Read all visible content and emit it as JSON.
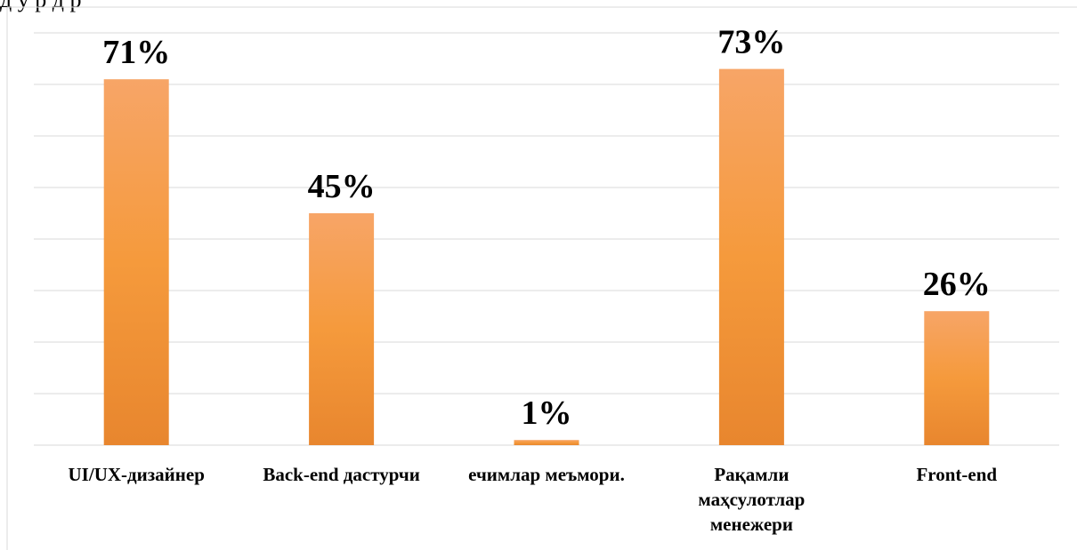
{
  "top_fragment": "д  у р д р",
  "chart_data": {
    "type": "bar",
    "categories": [
      [
        "UI/UX-дизайнер"
      ],
      [
        "Back-end дастурчи"
      ],
      [
        "ечимлар меъмори."
      ],
      [
        "Рақамли",
        "маҳсулотлар",
        "менежери"
      ],
      [
        "Front-end"
      ]
    ],
    "values": [
      71,
      45,
      1,
      73,
      26
    ],
    "value_labels": [
      "71%",
      "45%",
      "1%",
      "73%",
      "26%"
    ],
    "ylim": [
      0,
      80
    ],
    "grid": true,
    "colors": {
      "bar_top": "#f7a567",
      "bar_mid": "#f59a3c",
      "bar_bottom": "#e8862e",
      "gridline": "#d9d9d9",
      "axis": "#d9d9d9"
    }
  }
}
